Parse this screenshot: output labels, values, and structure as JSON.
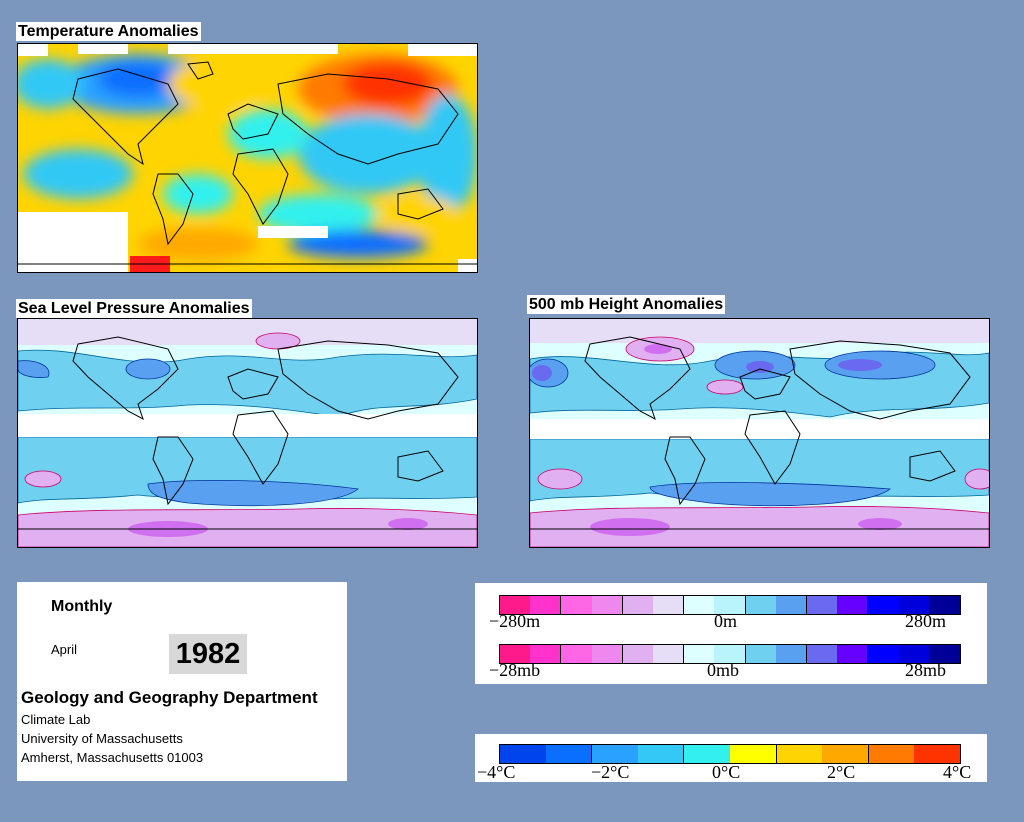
{
  "panels": {
    "temperature": {
      "title": "Temperature Anomalies"
    },
    "pressure": {
      "title": "Sea Level Pressure Anomalies"
    },
    "height": {
      "title": "500 mb Height Anomalies"
    }
  },
  "info": {
    "period": "Monthly",
    "month": "April",
    "year": "1982",
    "department": "Geology and Geography Department",
    "lab": "Climate Lab",
    "university": "University of Massachusetts",
    "address": "Amherst, Massachusetts 01003"
  },
  "legends": {
    "height": {
      "min": "−280m",
      "mid": "0m",
      "max": "280m"
    },
    "pressure": {
      "min": "−28mb",
      "mid": "0mb",
      "max": "28mb"
    },
    "temperature": {
      "t0": "−4°C",
      "t1": "−2°C",
      "t2": "0°C",
      "t3": "2°C",
      "t4": "4°C"
    }
  },
  "colors": {
    "background": "#7b97be",
    "anomaly_scale_pink_to_blue": [
      "#ff1a8c",
      "#ff33cc",
      "#ff66e6",
      "#ee88ee",
      "#e0b0f0",
      "#e6ddf6",
      "#ddffff",
      "#b8f4fa",
      "#6fd0f0",
      "#5aa0f0",
      "#6a6af0",
      "#6600ff",
      "#0000ff",
      "#0000dd",
      "#000099"
    ],
    "temperature_scale": [
      "#0044ee",
      "#0a6eff",
      "#2aa0ff",
      "#33c8f5",
      "#33f0ee",
      "#ffff00",
      "#ffd400",
      "#ffa800",
      "#ff7a00",
      "#ff3300"
    ]
  }
}
